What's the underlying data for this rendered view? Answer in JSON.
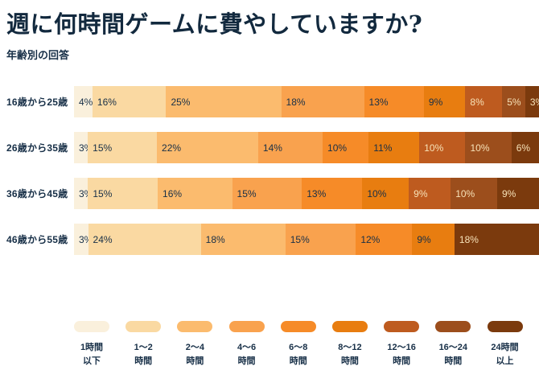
{
  "colors": {
    "background": "#FFFFFF",
    "text_dark": "#172F47",
    "title_color": "#12293E",
    "text_light": "#F7E2B8"
  },
  "chart_data": {
    "type": "bar",
    "variant": "horizontal-stacked-100pct",
    "title": "週に何時間ゲームに費やしていますか?",
    "subtitle": "年齢別の回答",
    "unit": "%",
    "legend_position": "bottom",
    "axis": "percent-of-responses, bars normalized to full width",
    "categories": [
      {
        "label_line1": "1時間",
        "label_line2": "以下",
        "color": "#FAF0DC",
        "value_text": "dark"
      },
      {
        "label_line1": "1〜2",
        "label_line2": "時間",
        "color": "#FAD9A2",
        "value_text": "dark"
      },
      {
        "label_line1": "2〜4",
        "label_line2": "時間",
        "color": "#FBBB6E",
        "value_text": "dark"
      },
      {
        "label_line1": "4〜6",
        "label_line2": "時間",
        "color": "#F9A24E",
        "value_text": "dark"
      },
      {
        "label_line1": "6〜8",
        "label_line2": "時間",
        "color": "#F68B28",
        "value_text": "dark"
      },
      {
        "label_line1": "8〜12",
        "label_line2": "時間",
        "color": "#E87D10",
        "value_text": "dark"
      },
      {
        "label_line1": "12〜16",
        "label_line2": "時間",
        "color": "#BE5B1F",
        "value_text": "light"
      },
      {
        "label_line1": "16〜24",
        "label_line2": "時間",
        "color": "#9C4E1C",
        "value_text": "light"
      },
      {
        "label_line1": "24時間",
        "label_line2": "以上",
        "color": "#7B3A0D",
        "value_text": "light"
      }
    ],
    "rows": [
      {
        "label": "16歳から25歳",
        "segments": [
          {
            "category": 0,
            "value": 4
          },
          {
            "category": 1,
            "value": 16
          },
          {
            "category": 2,
            "value": 25
          },
          {
            "category": 3,
            "value": 18
          },
          {
            "category": 4,
            "value": 13
          },
          {
            "category": 5,
            "value": 9
          },
          {
            "category": 6,
            "value": 8
          },
          {
            "category": 7,
            "value": 5
          },
          {
            "category": 8,
            "value": 3
          }
        ]
      },
      {
        "label": "26歳から35歳",
        "segments": [
          {
            "category": 0,
            "value": 3
          },
          {
            "category": 1,
            "value": 15
          },
          {
            "category": 2,
            "value": 22
          },
          {
            "category": 3,
            "value": 14
          },
          {
            "category": 4,
            "value": 10
          },
          {
            "category": 5,
            "value": 11
          },
          {
            "category": 6,
            "value": 10
          },
          {
            "category": 7,
            "value": 10
          },
          {
            "category": 8,
            "value": 6
          }
        ]
      },
      {
        "label": "36歳から45歳",
        "segments": [
          {
            "category": 0,
            "value": 3
          },
          {
            "category": 1,
            "value": 15
          },
          {
            "category": 2,
            "value": 16
          },
          {
            "category": 3,
            "value": 15
          },
          {
            "category": 4,
            "value": 13
          },
          {
            "category": 5,
            "value": 10
          },
          {
            "category": 6,
            "value": 9
          },
          {
            "category": 7,
            "value": 10
          },
          {
            "category": 8,
            "value": 9
          }
        ]
      },
      {
        "label": "46歳から55歳",
        "segments": [
          {
            "category": 0,
            "value": 3
          },
          {
            "category": 1,
            "value": 24
          },
          {
            "category": 2,
            "value": 18
          },
          {
            "category": 3,
            "value": 15
          },
          {
            "category": 4,
            "value": 12
          },
          {
            "category": 5,
            "value": 9
          },
          {
            "category": 8,
            "value": 18
          }
        ]
      }
    ]
  }
}
